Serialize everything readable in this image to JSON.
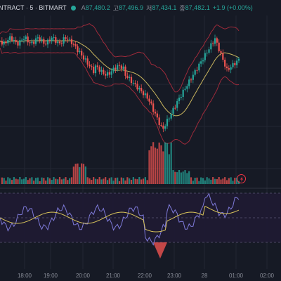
{
  "header": {
    "symbol_label": "NTRACT · 5 · BITMART",
    "ohlc": [
      {
        "key": "A",
        "value": "87,480.2"
      },
      {
        "key": "고",
        "value": "87,496.9"
      },
      {
        "key": "저",
        "value": "87,434.1"
      },
      {
        "key": "종",
        "value": "87,482.1"
      }
    ],
    "change": "+1.9 (+0.00%)"
  },
  "colors": {
    "up": "#26a69a",
    "down": "#ef5350",
    "bollinger": "#9c2a3a",
    "basis": "#c9b55e",
    "osc_line": "#7e7ad9",
    "osc_signal": "#d8c35a",
    "background": "#161a25"
  },
  "time_axis": {
    "labels": [
      "18:00",
      "19:00",
      "20:00",
      "21:00",
      "22:00",
      "23:00",
      "28",
      "01:00",
      "02:00"
    ]
  },
  "icons": [
    "live-indicator-dot",
    "dollar-icon"
  ]
}
